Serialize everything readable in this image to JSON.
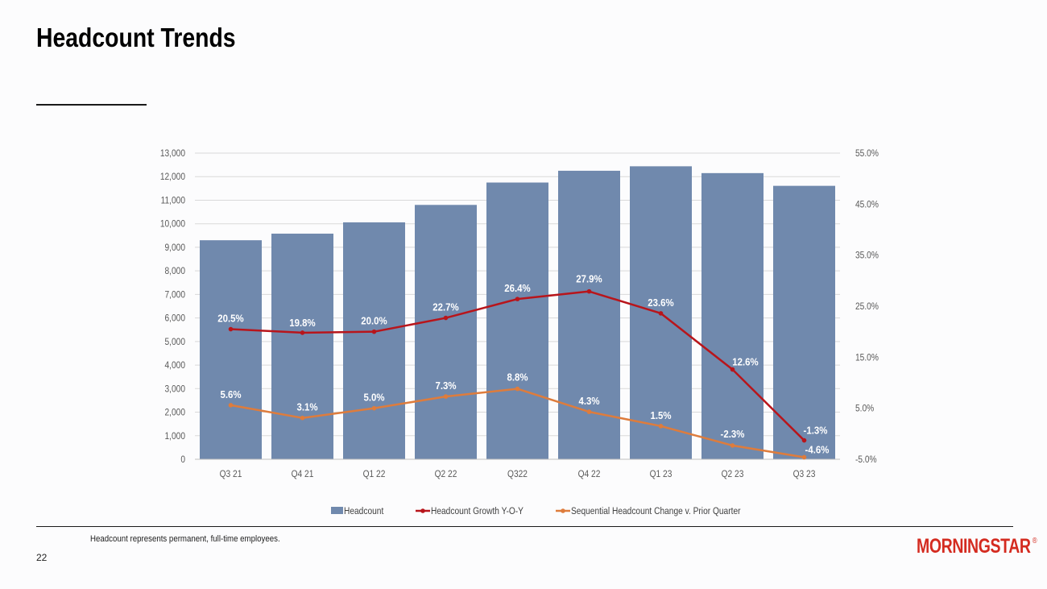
{
  "slide": {
    "title": "Headcount Trends",
    "footnote": "Headcount represents permanent, full-time employees.",
    "page_number": "22",
    "logo_text": "MORNINGSTAR",
    "logo_mark": "®"
  },
  "colors": {
    "bars": "#7089ad",
    "growth_line": "#b8151b",
    "sequential_line": "#de7c3c",
    "logo": "#d42b20"
  },
  "chart_data": {
    "type": "bar",
    "title": "",
    "categories": [
      "Q3 21",
      "Q4 21",
      "Q1 22",
      "Q2 22",
      "Q322",
      "Q4 22",
      "Q1 23",
      "Q2 23",
      "Q3 23"
    ],
    "ylim": [
      0,
      13000
    ],
    "y2lim": [
      -5.0,
      55.0
    ],
    "y_ticks": [
      "0",
      "1,000",
      "2,000",
      "3,000",
      "4,000",
      "5,000",
      "6,000",
      "7,000",
      "8,000",
      "9,000",
      "10,000",
      "11,000",
      "12,000",
      "13,000"
    ],
    "y2_ticks": [
      "-5.0%",
      "5.0%",
      "15.0%",
      "25.0%",
      "35.0%",
      "45.0%",
      "55.0%"
    ],
    "series": [
      {
        "name": "Headcount",
        "type": "bar",
        "axis": "left",
        "values": [
          9300,
          9580,
          10060,
          10800,
          11750,
          12250,
          12440,
          12150,
          11610
        ]
      },
      {
        "name": "Headcount Growth Y-O-Y",
        "type": "line",
        "axis": "right",
        "values": [
          20.5,
          19.8,
          20.0,
          22.7,
          26.4,
          27.9,
          23.6,
          12.6,
          -1.3
        ],
        "labels": [
          "20.5%",
          "19.8%",
          "20.0%",
          "22.7%",
          "26.4%",
          "27.9%",
          "23.6%",
          "12.6%",
          "-1.3%"
        ]
      },
      {
        "name": "Sequential Headcount Change v. Prior Quarter",
        "type": "line",
        "axis": "right",
        "values": [
          5.6,
          3.1,
          5.0,
          7.3,
          8.8,
          4.3,
          1.5,
          -2.3,
          -4.6
        ],
        "labels": [
          "5.6%",
          "3.1%",
          "5.0%",
          "7.3%",
          "8.8%",
          "4.3%",
          "1.5%",
          "-2.3%",
          "-4.6%"
        ]
      }
    ],
    "legend": [
      "Headcount",
      "Headcount Growth Y-O-Y",
      "Sequential Headcount Change v. Prior Quarter"
    ],
    "legend_position": "bottom",
    "grid": true
  }
}
